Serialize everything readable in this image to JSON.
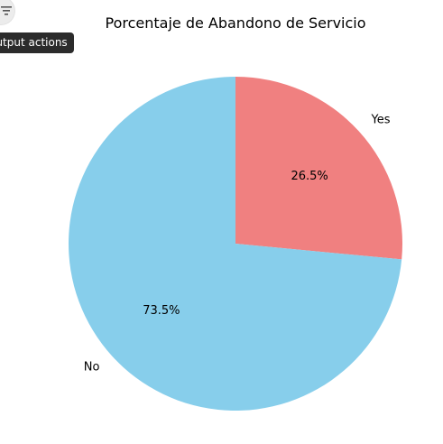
{
  "toolbar": {
    "output_actions_icon": "filter-lines-icon",
    "output_actions_tooltip": "Output actions"
  },
  "chart_data": {
    "type": "pie",
    "title": "Porcentaje de Abandono de Servicio",
    "start_angle_deg": 90,
    "direction": "clockwise",
    "slices": [
      {
        "label": "Yes",
        "value": 26.5,
        "pct_label": "26.5%",
        "color": "#f08080"
      },
      {
        "label": "No",
        "value": 73.5,
        "pct_label": "73.5%",
        "color": "#87ceeb"
      }
    ]
  }
}
